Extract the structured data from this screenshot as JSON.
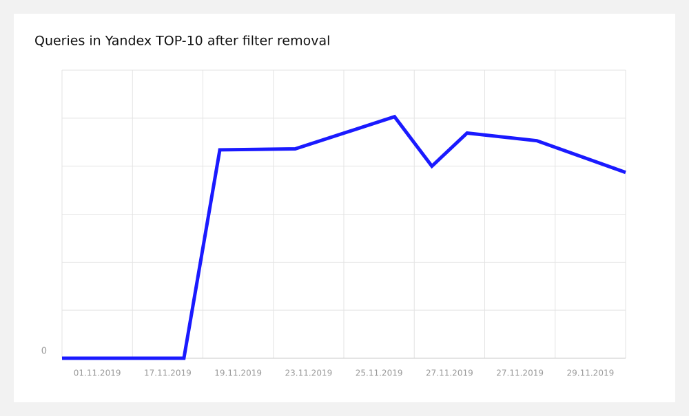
{
  "chart_data": {
    "type": "line",
    "title": "Queries in Yandex TOP-10 after filter removal",
    "categories": [
      "01.11.2019",
      "17.11.2019",
      "19.11.2019",
      "23.11.2019",
      "25.11.2019",
      "27.11.2019",
      "27.11.2019",
      "29.11.2019"
    ],
    "x": [
      0,
      1.73,
      2.24,
      3.31,
      4.72,
      5.25,
      5.75,
      6.74,
      8
    ],
    "xlim": [
      0,
      8
    ],
    "series": [
      {
        "color": "#1a1aff",
        "values": [
          0,
          0,
          4.34,
          4.36,
          5.03,
          4.0,
          4.69,
          4.53,
          3.87
        ]
      }
    ],
    "ylim": [
      0,
      6
    ],
    "yticks": [
      0,
      {
        "value": 1,
        "label": null
      },
      {
        "value": 2,
        "label": null
      },
      {
        "value": 3,
        "label": null
      },
      {
        "value": 4,
        "label": null
      },
      {
        "value": 5,
        "label": null
      },
      {
        "value": 6,
        "label": null
      }
    ],
    "grid": true
  }
}
